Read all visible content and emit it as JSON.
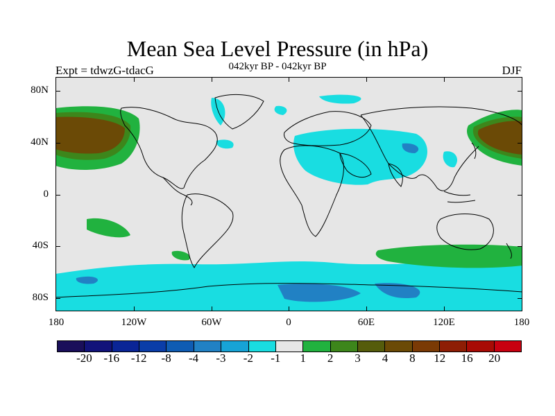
{
  "title": "Mean Sea Level Pressure (in hPa)",
  "subtitle_left": "Expt = tdwzG-tdacG",
  "subtitle_center": "042kyr BP - 042kyr BP",
  "subtitle_right": "DJF",
  "lat_labels": [
    "80N",
    "40N",
    "0",
    "40S",
    "80S"
  ],
  "lon_labels": [
    "180",
    "120W",
    "60W",
    "0",
    "60E",
    "120E",
    "180"
  ],
  "colorbar": {
    "colors": [
      "#1a0f5a",
      "#12137a",
      "#0a2596",
      "#0a3da8",
      "#0f5cb3",
      "#2181c4",
      "#17a3d6",
      "#19dde1",
      "#e6e6e6",
      "#21b23f",
      "#3d861b",
      "#555c0c",
      "#6b4a06",
      "#7a3a05",
      "#8e1e05",
      "#a80b05",
      "#c80010"
    ],
    "labels": [
      "-20",
      "-16",
      "-12",
      "-8",
      "-4",
      "-3",
      "-2",
      "-1",
      "1",
      "2",
      "3",
      "4",
      "8",
      "12",
      "16",
      "20"
    ]
  },
  "legend_colors": {
    "background": "#e6e6e6",
    "cyan": "#19dde1",
    "blue": "#2181c4",
    "green": "#21b23f",
    "olive": "#3d861b",
    "brown": "#6b4a06"
  }
}
